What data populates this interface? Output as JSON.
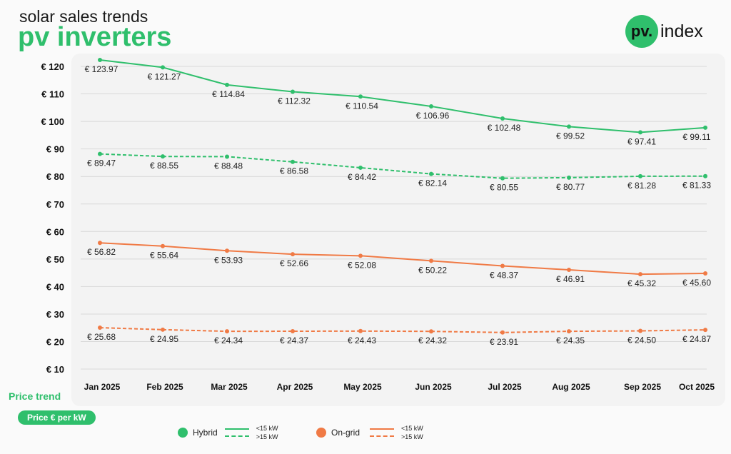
{
  "header": {
    "subtitle": "solar sales trends",
    "title": "pv inverters",
    "logo_mark": "pv.",
    "logo_word": "index"
  },
  "footer": {
    "price_trend": "Price trend",
    "unit_pill": "Price € per kW"
  },
  "legend": {
    "hybrid": "Hybrid",
    "ongrid": "On-grid",
    "small": "<15 kW",
    "large": ">15 kW"
  },
  "chart_data": {
    "type": "line",
    "title": "pv inverters",
    "ylabel": "Price € per kW",
    "ylim": [
      10,
      120
    ],
    "yticks": [
      "€ 120",
      "€ 110",
      "€ 100",
      "€ 90",
      "€ 80",
      "€ 70",
      "€ 60",
      "€ 50",
      "€ 40",
      "€ 30",
      "€ 20",
      "€ 10"
    ],
    "categories": [
      "Jan 2025",
      "Feb 2025",
      "Mar 2025",
      "Apr 2025",
      "May 2025",
      "Jun 2025",
      "Jul 2025",
      "Aug 2025",
      "Sep 2025",
      "Oct 2025"
    ],
    "grid": true,
    "legend_position": "bottom",
    "colors": {
      "hybrid": "#2fbf6c",
      "ongrid": "#f07a45"
    },
    "series": [
      {
        "name": "Hybrid <15 kW",
        "color": "#2fbf6c",
        "dashed": false,
        "values": [
          123.97,
          121.27,
          114.84,
          112.32,
          110.54,
          106.96,
          102.48,
          99.52,
          97.41,
          99.11
        ],
        "labels": [
          "€ 123.97",
          "€ 121.27",
          "€ 114.84",
          "€ 112.32",
          "€ 110.54",
          "€ 106.96",
          "€ 102.48",
          "€ 99.52",
          "€ 97.41",
          "€ 99.11"
        ]
      },
      {
        "name": "Hybrid >15 kW",
        "color": "#2fbf6c",
        "dashed": true,
        "values": [
          89.47,
          88.55,
          88.48,
          86.58,
          84.42,
          82.14,
          80.55,
          80.77,
          81.28,
          81.33
        ],
        "labels": [
          "€ 89.47",
          "€ 88.55",
          "€ 88.48",
          "€ 86.58",
          "€ 84.42",
          "€ 82.14",
          "€ 80.55",
          "€ 80.77",
          "€ 81.28",
          "€ 81.33"
        ]
      },
      {
        "name": "On-grid <15 kW",
        "color": "#f07a45",
        "dashed": false,
        "values": [
          56.82,
          55.64,
          53.93,
          52.66,
          52.08,
          50.22,
          48.37,
          46.91,
          45.32,
          45.6
        ],
        "labels": [
          "€ 56.82",
          "€ 55.64",
          "€ 53.93",
          "€ 52.66",
          "€ 52.08",
          "€ 50.22",
          "€ 48.37",
          "€ 46.91",
          "€ 45.32",
          "€ 45.60"
        ]
      },
      {
        "name": "On-grid >15 kW",
        "color": "#f07a45",
        "dashed": true,
        "values": [
          25.68,
          24.95,
          24.34,
          24.37,
          24.43,
          24.32,
          23.91,
          24.35,
          24.5,
          24.87
        ],
        "labels": [
          "€ 25.68",
          "€ 24.95",
          "€ 24.34",
          "€ 24.37",
          "€ 24.43",
          "€ 24.32",
          "€ 23.91",
          "€ 24.35",
          "€ 24.50",
          "€ 24.87"
        ]
      }
    ]
  }
}
